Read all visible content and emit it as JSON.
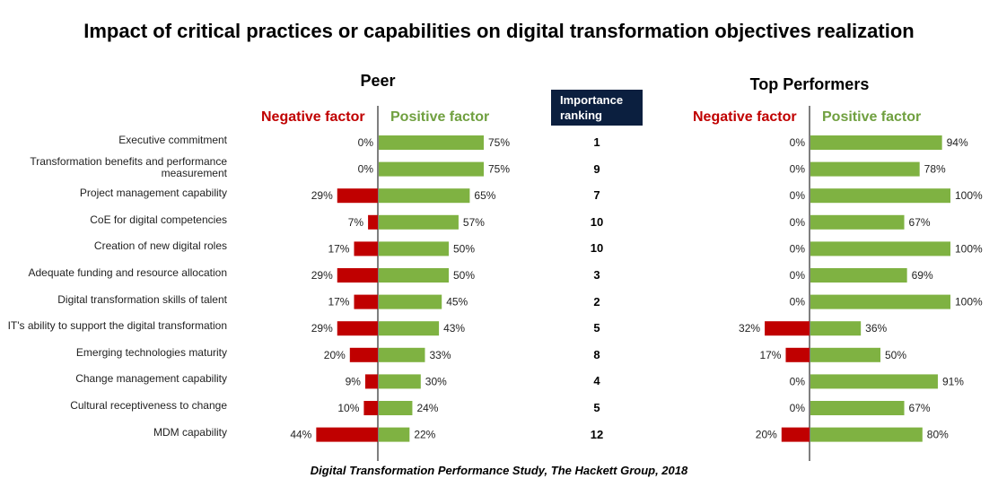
{
  "title": "Impact of critical practices or capabilities on digital transformation objectives realization",
  "footer": "Digital Transformation Performance Study, The Hackett Group, 2018",
  "rank_header": "Importance ranking",
  "colors": {
    "negative": "#c00000",
    "positive": "#7fb242",
    "header_bg": "#0b1f3f"
  },
  "chart_data": [
    {
      "type": "bar",
      "title": "Peer",
      "legend": [
        "Negative factor",
        "Positive factor"
      ],
      "categories": [
        "Executive commitment",
        "Transformation benefits and performance measurement",
        "Project management capability",
        "CoE for digital competencies",
        "Creation of new digital roles",
        "Adequate funding and resource allocation",
        "Digital transformation skills of talent",
        "IT's ability to support the digital transformation",
        "Emerging technologies maturity",
        "Change management capability",
        "Cultural receptiveness to change",
        "MDM capability"
      ],
      "series": [
        {
          "name": "Negative factor",
          "values": [
            0,
            0,
            29,
            7,
            17,
            29,
            17,
            29,
            20,
            9,
            10,
            44
          ]
        },
        {
          "name": "Positive factor",
          "values": [
            75,
            75,
            65,
            57,
            50,
            50,
            45,
            43,
            33,
            30,
            24,
            22
          ]
        }
      ],
      "importance_ranking": [
        "1",
        "9",
        "7",
        "10",
        "10",
        "3",
        "2",
        "5",
        "8",
        "4",
        "5",
        "12"
      ]
    },
    {
      "type": "bar",
      "title": "Top Performers",
      "legend": [
        "Negative factor",
        "Positive factor"
      ],
      "series": [
        {
          "name": "Negative factor",
          "values": [
            0,
            0,
            0,
            0,
            0,
            0,
            0,
            32,
            17,
            0,
            0,
            20
          ]
        },
        {
          "name": "Positive factor",
          "values": [
            94,
            78,
            100,
            67,
            100,
            69,
            100,
            36,
            50,
            91,
            67,
            80
          ]
        }
      ]
    }
  ]
}
